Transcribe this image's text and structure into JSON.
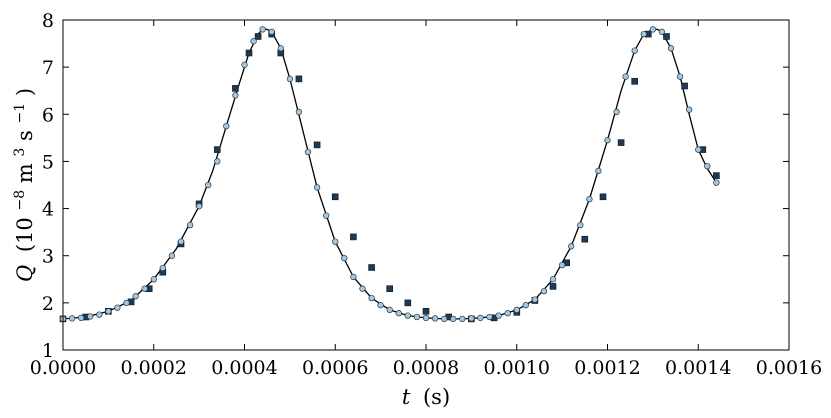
{
  "chart_data": {
    "type": "line",
    "xlabel": {
      "symbol": "t",
      "unit": "(s)"
    },
    "ylabel": {
      "symbol": "Q",
      "unit_prefix": "(10",
      "unit_exp": "−8",
      "unit_mid": " m",
      "unit_exp2": "3",
      "unit_mid2": " s",
      "unit_exp3": "−1",
      "unit_end": ")"
    },
    "xlim": [
      0,
      0.0016
    ],
    "ylim": [
      1,
      8
    ],
    "x_ticks": [
      0,
      0.0002,
      0.0004,
      0.0006,
      0.0008,
      0.001,
      0.0012,
      0.0014,
      0.0016
    ],
    "x_tick_labels": [
      "0.0000",
      "0.0002",
      "0.0004",
      "0.0006",
      "0.0008",
      "0.0010",
      "0.0012",
      "0.0014",
      "0.0016"
    ],
    "y_ticks": [
      1,
      2,
      3,
      4,
      5,
      6,
      7,
      8
    ],
    "y_tick_labels": [
      "1",
      "2",
      "3",
      "4",
      "5",
      "6",
      "7",
      "8"
    ],
    "grid": false,
    "legend": "none",
    "series": [
      {
        "style": "line",
        "color": "#000000",
        "x": [
          0.0,
          5e-05,
          0.0001,
          0.00015,
          0.0002,
          0.00025,
          0.0003,
          0.00033,
          0.00036,
          0.00039,
          0.00041,
          0.00043,
          0.00044,
          0.00045,
          0.00046,
          0.00048,
          0.0005,
          0.00053,
          0.00056,
          0.0006,
          0.00064,
          0.00068,
          0.00072,
          0.00076,
          0.0008,
          0.00084,
          0.00088,
          0.00092,
          0.00096,
          0.001,
          0.00104,
          0.00108,
          0.00112,
          0.00116,
          0.0012,
          0.00123,
          0.00126,
          0.00128,
          0.0013,
          0.00131,
          0.00132,
          0.00134,
          0.00136,
          0.00138,
          0.0014,
          0.00142,
          0.00144
        ],
        "y": [
          1.66,
          1.7,
          1.82,
          2.05,
          2.5,
          3.15,
          4.05,
          4.8,
          5.75,
          6.7,
          7.3,
          7.7,
          7.8,
          7.8,
          7.75,
          7.4,
          6.75,
          5.6,
          4.45,
          3.3,
          2.55,
          2.1,
          1.85,
          1.73,
          1.68,
          1.66,
          1.66,
          1.68,
          1.73,
          1.85,
          2.07,
          2.5,
          3.2,
          4.2,
          5.45,
          6.5,
          7.35,
          7.7,
          7.8,
          7.8,
          7.75,
          7.4,
          6.8,
          6.0,
          5.25,
          4.85,
          4.55
        ]
      },
      {
        "style": "circle-markers",
        "color": "#a9c7dc",
        "edge": "#22384a",
        "x": [
          0.0,
          2e-05,
          4e-05,
          6e-05,
          8e-05,
          0.0001,
          0.00012,
          0.00014,
          0.00016,
          0.00018,
          0.0002,
          0.00022,
          0.00024,
          0.00026,
          0.00028,
          0.0003,
          0.00032,
          0.00034,
          0.00036,
          0.00038,
          0.0004,
          0.00042,
          0.00044,
          0.00046,
          0.00048,
          0.0005,
          0.00052,
          0.00054,
          0.00056,
          0.00058,
          0.0006,
          0.00062,
          0.00064,
          0.00066,
          0.00068,
          0.0007,
          0.00072,
          0.00074,
          0.00076,
          0.00078,
          0.0008,
          0.00082,
          0.00084,
          0.00086,
          0.00088,
          0.0009,
          0.00092,
          0.00094,
          0.00096,
          0.00098,
          0.001,
          0.00102,
          0.00104,
          0.00106,
          0.00108,
          0.0011,
          0.00112,
          0.00114,
          0.00116,
          0.00118,
          0.0012,
          0.00122,
          0.00124,
          0.00126,
          0.00128,
          0.0013,
          0.00132,
          0.00134,
          0.00136,
          0.00138,
          0.0014,
          0.00142,
          0.00144
        ],
        "y": [
          1.66,
          1.67,
          1.68,
          1.71,
          1.75,
          1.82,
          1.9,
          2.0,
          2.14,
          2.3,
          2.5,
          2.74,
          3.0,
          3.3,
          3.65,
          4.05,
          4.5,
          5.0,
          5.75,
          6.4,
          7.05,
          7.55,
          7.8,
          7.75,
          7.4,
          6.75,
          6.05,
          5.2,
          4.45,
          3.85,
          3.3,
          2.95,
          2.55,
          2.3,
          2.1,
          1.95,
          1.85,
          1.78,
          1.73,
          1.7,
          1.68,
          1.67,
          1.66,
          1.66,
          1.66,
          1.67,
          1.68,
          1.7,
          1.73,
          1.78,
          1.85,
          1.95,
          2.07,
          2.25,
          2.5,
          2.8,
          3.2,
          3.65,
          4.2,
          4.8,
          5.45,
          6.05,
          6.8,
          7.35,
          7.7,
          7.8,
          7.75,
          7.4,
          6.8,
          6.1,
          5.25,
          4.9,
          4.55
        ]
      },
      {
        "style": "square-markers",
        "color": "#1e3a52",
        "x": [
          0.0,
          5e-05,
          0.0001,
          0.00015,
          0.00019,
          0.00022,
          0.00026,
          0.0003,
          0.00034,
          0.00038,
          0.00041,
          0.00043,
          0.00046,
          0.00048,
          0.00052,
          0.00056,
          0.0006,
          0.00064,
          0.00068,
          0.00072,
          0.00076,
          0.0008,
          0.00085,
          0.0009,
          0.00095,
          0.001,
          0.00104,
          0.00108,
          0.00111,
          0.00115,
          0.00119,
          0.00123,
          0.00126,
          0.00129,
          0.00133,
          0.00137,
          0.00141,
          0.00144
        ],
        "y": [
          1.66,
          1.7,
          1.82,
          2.02,
          2.3,
          2.65,
          3.25,
          4.1,
          5.25,
          6.55,
          7.3,
          7.65,
          7.7,
          7.3,
          6.75,
          5.35,
          4.25,
          3.4,
          2.75,
          2.3,
          2.0,
          1.82,
          1.7,
          1.66,
          1.68,
          1.8,
          2.05,
          2.35,
          2.85,
          3.35,
          4.25,
          5.4,
          6.7,
          7.7,
          7.65,
          6.6,
          5.25,
          4.7
        ]
      }
    ]
  }
}
